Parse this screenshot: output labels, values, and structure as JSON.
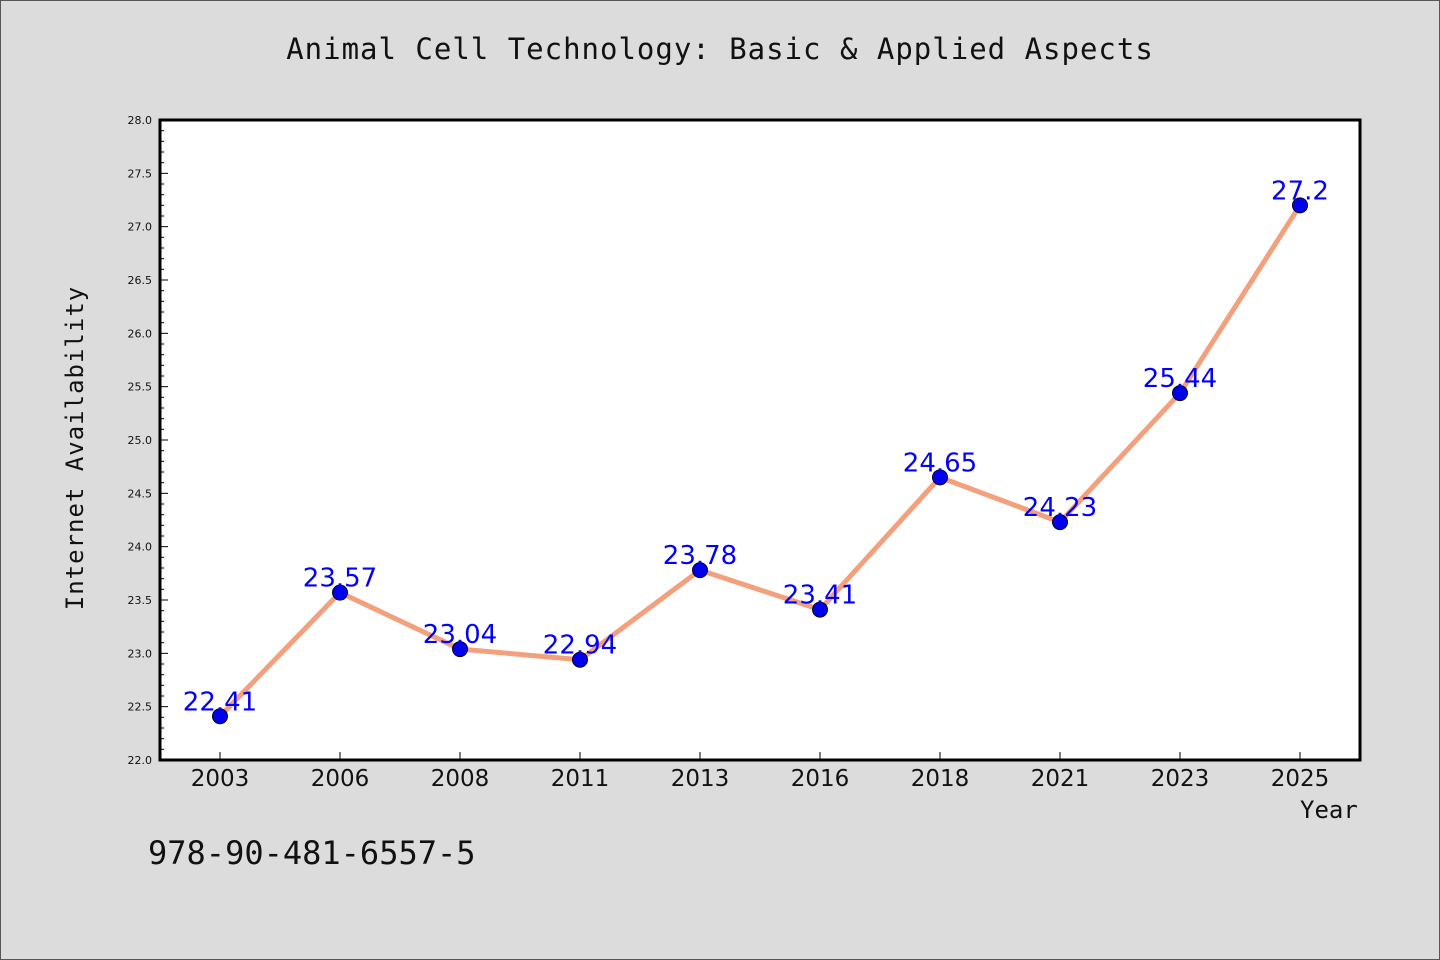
{
  "chart_data": {
    "type": "line",
    "title": "Animal Cell Technology: Basic & Applied Aspects",
    "xlabel": "Year",
    "ylabel": "Internet Availability",
    "categories": [
      "2003",
      "2006",
      "2008",
      "2011",
      "2013",
      "2016",
      "2018",
      "2021",
      "2023",
      "2025"
    ],
    "values": [
      22.41,
      23.57,
      23.04,
      22.94,
      23.78,
      23.41,
      24.65,
      24.23,
      25.44,
      27.2
    ],
    "data_labels": [
      "22.41",
      "23.57",
      "23.04",
      "22.94",
      "23.78",
      "23.41",
      "24.65",
      "24.23",
      "25.44",
      "27.2"
    ],
    "ylim": [
      22.0,
      28.0
    ],
    "yticks": [
      "22.0",
      "22.5",
      "23.0",
      "23.5",
      "24.0",
      "24.5",
      "25.0",
      "25.5",
      "26.0",
      "26.5",
      "27.0",
      "27.5",
      "28.0"
    ],
    "grid": false,
    "line_color": "#f4a07c",
    "marker_color": "#0000ee",
    "label_color": "#0000ff",
    "background": "#dcdcdc",
    "plot_background": "#ffffff"
  },
  "footer_text": "978-90-481-6557-5"
}
